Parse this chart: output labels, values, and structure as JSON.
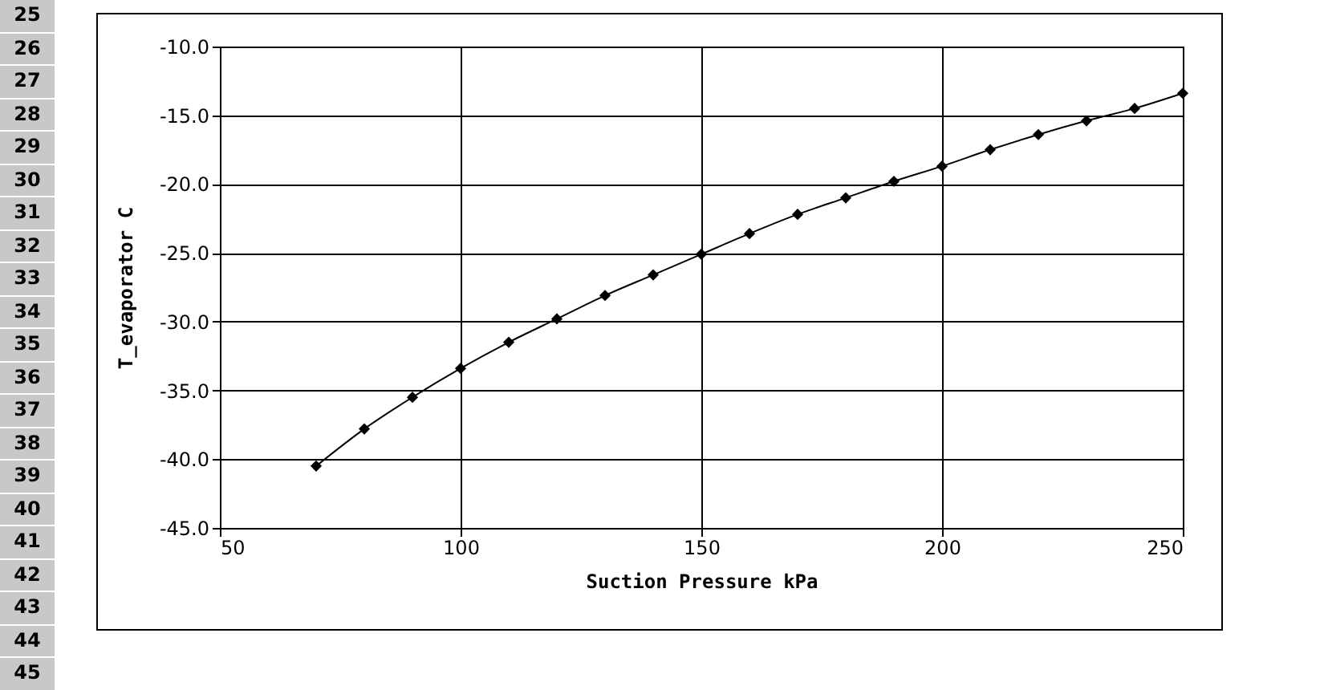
{
  "chart_data": {
    "type": "line",
    "xlabel": "Suction Pressure  kPa",
    "ylabel": "T_evaporator   C",
    "x": [
      70,
      80,
      90,
      100,
      110,
      120,
      130,
      140,
      150,
      160,
      170,
      180,
      190,
      200,
      210,
      220,
      230,
      240,
      250
    ],
    "series": [
      {
        "color": "#000000",
        "values": [
          -40.5,
          -37.8,
          -35.5,
          -33.4,
          -31.5,
          -29.8,
          -28.1,
          -26.6,
          -25.1,
          -23.6,
          -22.2,
          -21.0,
          -19.8,
          -18.7,
          -17.5,
          -16.4,
          -15.4,
          -14.5,
          -13.4
        ]
      }
    ],
    "xlim": [
      50,
      250
    ],
    "xticks": [
      50,
      100,
      150,
      200,
      250
    ],
    "ylim": [
      -45,
      -10
    ],
    "yticks": [
      {
        "value": -45,
        "label": "-45.0"
      },
      {
        "value": -40,
        "label": "-40.0"
      },
      {
        "value": -35,
        "label": "-35.0"
      },
      {
        "value": -30,
        "label": "-30.0"
      },
      {
        "value": -25,
        "label": "-25.0"
      },
      {
        "value": -20,
        "label": "-20.0"
      },
      {
        "value": -15,
        "label": "-15.0"
      },
      {
        "value": -10,
        "label": "-10.0"
      }
    ],
    "grid": true,
    "marker": "diamond",
    "line_style": "solid",
    "annotations": [
      "25",
      "26",
      "27",
      "28",
      "29",
      "30",
      "31",
      "32",
      "33",
      "34",
      "35",
      "36",
      "37",
      "38",
      "39",
      "40",
      "41",
      "42",
      "43",
      "44",
      "45"
    ]
  }
}
